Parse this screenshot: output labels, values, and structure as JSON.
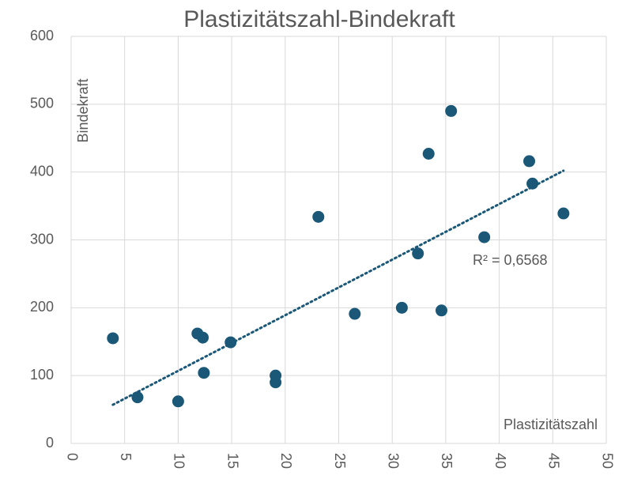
{
  "chart_data": {
    "type": "scatter",
    "title": "Plastizitätszahl-Bindekraft",
    "x_label": "Plastizitätszahl",
    "y_label": "Bindekraft",
    "series": [
      {
        "name": "Bindekraft",
        "color": "#1b5877",
        "x": [
          3.9,
          6.2,
          10.0,
          11.8,
          12.3,
          12.4,
          14.9,
          19.1,
          19.1,
          23.1,
          26.5,
          30.9,
          32.4,
          33.4,
          34.6,
          35.5,
          38.6,
          42.8,
          43.1,
          46.0
        ],
        "values": [
          155,
          68,
          62,
          162,
          156,
          104,
          149,
          100,
          90,
          334,
          191,
          200,
          280,
          427,
          196,
          490,
          304,
          416,
          383,
          339
        ]
      }
    ],
    "trendline": {
      "x": [
        3.9,
        46.0
      ],
      "values": [
        57,
        402
      ],
      "label": "R² = 0,6568"
    },
    "xlim": [
      0,
      50
    ],
    "xticks": [
      0,
      5,
      10,
      15,
      20,
      25,
      30,
      35,
      40,
      45,
      50
    ],
    "ylim": [
      0,
      600
    ],
    "yticks": [
      0,
      100,
      200,
      300,
      400,
      500,
      600
    ],
    "grid": true
  }
}
